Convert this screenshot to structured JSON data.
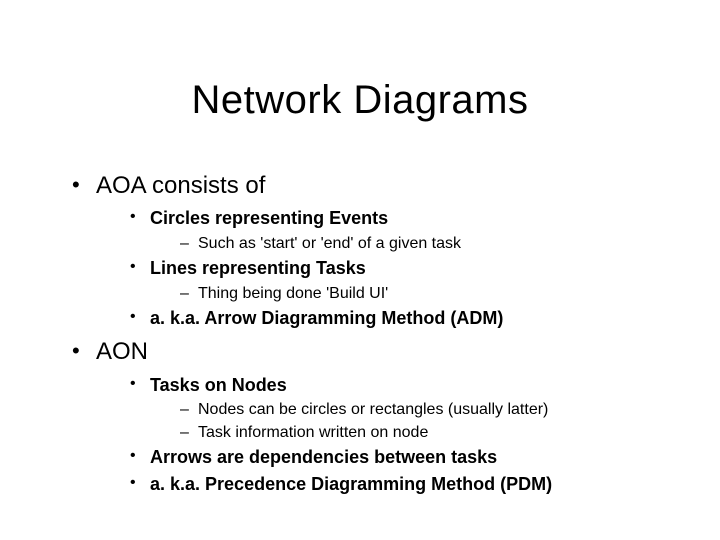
{
  "title": "Network Diagrams",
  "bullets": {
    "aoa": {
      "label": "AOA consists of",
      "items": [
        {
          "label": "Circles representing Events",
          "sub": [
            "Such as 'start' or 'end' of a given task"
          ]
        },
        {
          "label": "Lines representing Tasks",
          "sub": [
            "Thing being done 'Build UI'"
          ]
        },
        {
          "label": "a. k.a. Arrow Diagramming Method (ADM)",
          "sub": []
        }
      ]
    },
    "aon": {
      "label": "AON",
      "items": [
        {
          "label": "Tasks on Nodes",
          "sub": [
            "Nodes can be circles or rectangles (usually latter)",
            "Task information written on node"
          ]
        },
        {
          "label": "Arrows are dependencies between tasks",
          "sub": []
        },
        {
          "label": "a. k.a. Precedence Diagramming Method (PDM)",
          "sub": []
        }
      ]
    }
  },
  "style": {
    "background_color": "#ffffff",
    "text_color": "#000000",
    "font_family": "Arial",
    "title_fontsize": 40,
    "l1_fontsize": 24,
    "l2_fontsize": 18,
    "l3_fontsize": 16
  }
}
